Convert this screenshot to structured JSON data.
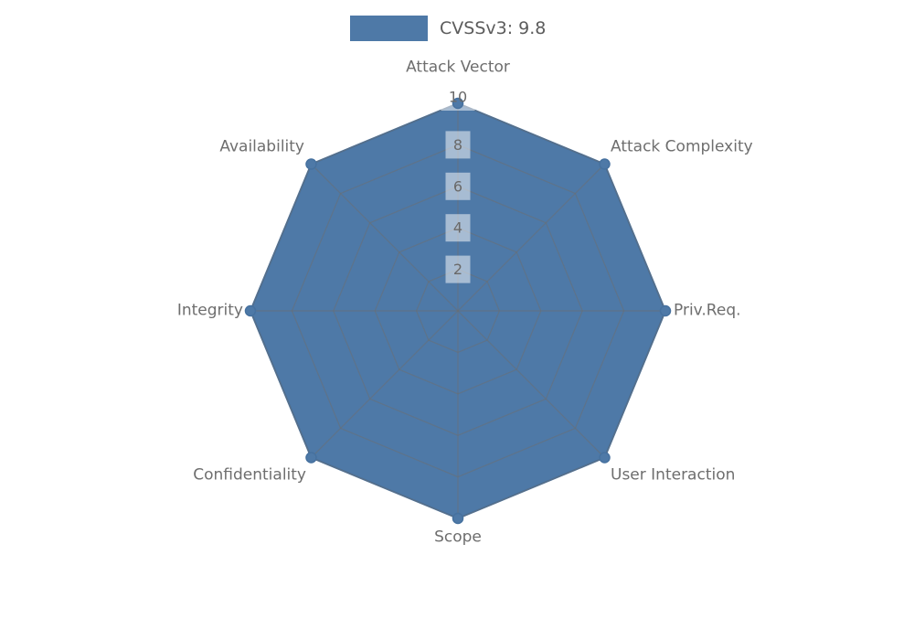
{
  "chart_data": {
    "type": "radar",
    "title": "",
    "legend": {
      "label": "CVSSv3: 9.8",
      "color": "#4e79a7",
      "position": "top-center"
    },
    "categories": [
      "Attack Vector",
      "Attack Complexity",
      "Priv.Req.",
      "User Interaction",
      "Scope",
      "Confidentiality",
      "Integrity",
      "Availability"
    ],
    "series": [
      {
        "name": "CVSSv3: 9.8",
        "values": [
          10,
          10,
          10,
          10,
          10,
          10,
          10,
          10
        ]
      }
    ],
    "ticks": [
      2,
      4,
      6,
      8,
      10
    ],
    "rlim": [
      0,
      10
    ],
    "grid": true,
    "fill_color": "#4e79a7",
    "edge_color": "#46719f",
    "grid_color": "#6e6e6e",
    "label_color": "#6e6e6e",
    "tick_label_color": "#696969",
    "tick_bbox_color": "#ffffff"
  }
}
